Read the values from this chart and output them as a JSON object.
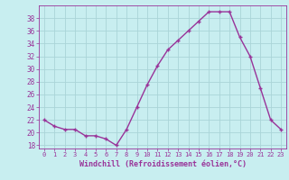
{
  "x": [
    0,
    1,
    2,
    3,
    4,
    5,
    6,
    7,
    8,
    9,
    10,
    11,
    12,
    13,
    14,
    15,
    16,
    17,
    18,
    19,
    20,
    21,
    22,
    23
  ],
  "y": [
    22,
    21,
    20.5,
    20.5,
    19.5,
    19.5,
    19,
    18,
    20.5,
    24,
    27.5,
    30.5,
    33,
    34.5,
    36,
    37.5,
    39,
    39,
    39,
    35,
    32,
    27,
    22,
    20.5
  ],
  "line_color": "#993399",
  "marker": "+",
  "marker_size": 3,
  "background_color": "#c8eef0",
  "grid_color": "#aad4d8",
  "xlabel": "Windchill (Refroidissement éolien,°C)",
  "xlabel_color": "#993399",
  "tick_color": "#993399",
  "ylim": [
    17.5,
    40
  ],
  "yticks": [
    18,
    20,
    22,
    24,
    26,
    28,
    30,
    32,
    34,
    36,
    38
  ],
  "xticks": [
    0,
    1,
    2,
    3,
    4,
    5,
    6,
    7,
    8,
    9,
    10,
    11,
    12,
    13,
    14,
    15,
    16,
    17,
    18,
    19,
    20,
    21,
    22,
    23
  ],
  "line_width": 1.0,
  "xlim": [
    -0.5,
    23.5
  ]
}
